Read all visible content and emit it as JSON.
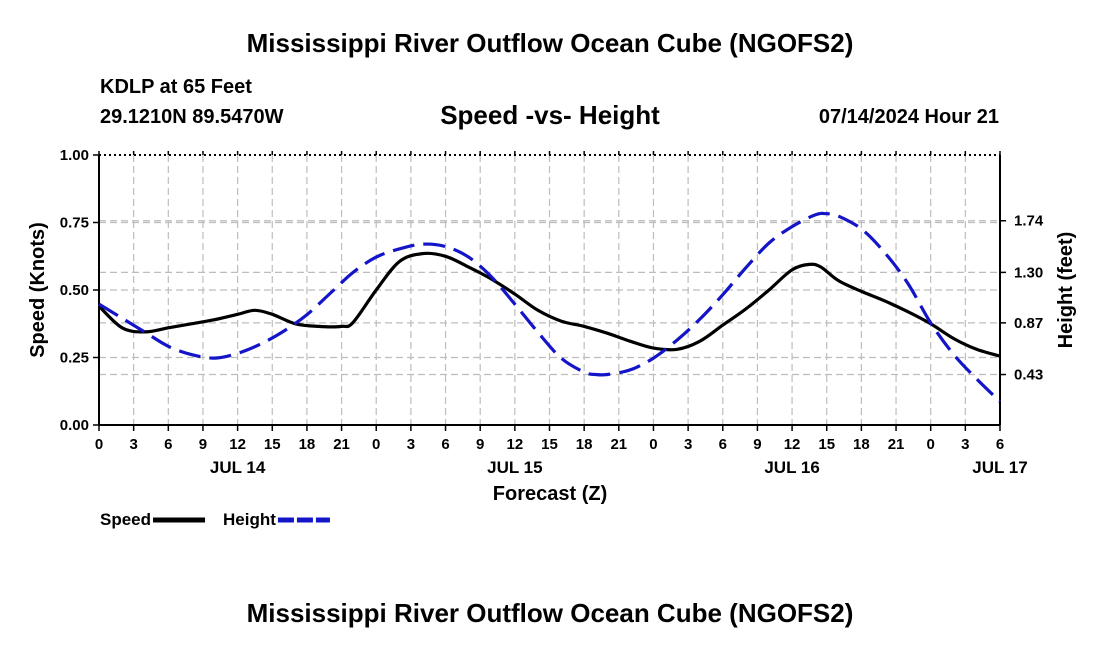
{
  "title": "Mississippi River Outflow Ocean Cube (NGOFS2)",
  "station": "KDLP at 65 Feet",
  "coordinates": "29.1210N  89.5470W",
  "subtitle": "Speed -vs- Height",
  "datetime": "07/14/2024 Hour 21",
  "footer_title": "Mississippi River Outflow Ocean Cube (NGOFS2)",
  "chart_data": {
    "type": "line",
    "xlabel": "Forecast (Z)",
    "ylabel_left": "Speed (Knots)",
    "ylabel_right": "Height (feet)",
    "x_range": [
      0,
      78
    ],
    "x_tick_step": 3,
    "x_tick_labels": [
      "0",
      "3",
      "6",
      "9",
      "12",
      "15",
      "18",
      "21",
      "0",
      "3",
      "6",
      "9",
      "12",
      "15",
      "18",
      "21",
      "0",
      "3",
      "6",
      "9",
      "12",
      "15",
      "18",
      "21",
      "0",
      "3",
      "6"
    ],
    "day_labels": [
      {
        "label": "JUL 14",
        "hour": 12
      },
      {
        "label": "JUL 15",
        "hour": 36
      },
      {
        "label": "JUL 16",
        "hour": 60
      },
      {
        "label": "JUL 17",
        "hour": 78
      }
    ],
    "left_axis": {
      "range": [
        0,
        1
      ],
      "ticks": [
        0,
        0.25,
        0.5,
        0.75,
        1.0
      ],
      "tick_labels": [
        "0.00",
        "0.25",
        "0.50",
        "0.75",
        "1.00"
      ]
    },
    "right_axis": {
      "range": [
        0,
        2.3
      ],
      "ticks": [
        0.43,
        0.87,
        1.3,
        1.74
      ],
      "tick_labels": [
        "0.43",
        "0.87",
        "1.30",
        "1.74"
      ]
    },
    "series": [
      {
        "name": "Speed",
        "axis": "left",
        "color": "#000000",
        "style": "solid",
        "x": [
          0,
          2,
          4,
          6,
          8,
          10,
          12,
          13.5,
          15,
          17,
          19,
          21,
          22,
          24,
          26,
          28,
          30,
          32,
          34,
          36,
          38,
          40,
          42,
          44,
          46,
          48,
          50,
          52,
          54,
          56,
          58,
          60,
          61.5,
          62.5,
          64,
          66,
          68,
          70,
          72,
          74,
          76,
          78
        ],
        "values": [
          0.44,
          0.36,
          0.345,
          0.36,
          0.375,
          0.39,
          0.41,
          0.425,
          0.41,
          0.375,
          0.365,
          0.365,
          0.38,
          0.5,
          0.605,
          0.635,
          0.625,
          0.585,
          0.54,
          0.485,
          0.425,
          0.385,
          0.365,
          0.34,
          0.31,
          0.285,
          0.28,
          0.31,
          0.37,
          0.43,
          0.5,
          0.575,
          0.595,
          0.585,
          0.535,
          0.495,
          0.46,
          0.42,
          0.375,
          0.32,
          0.28,
          0.255
        ]
      },
      {
        "name": "Height",
        "axis": "right",
        "color": "#1414c8",
        "style": "dashed",
        "x": [
          0,
          2,
          4,
          6,
          8,
          10,
          12,
          14,
          16,
          18,
          20,
          22,
          24,
          26,
          28,
          30,
          32,
          34,
          36,
          38,
          40,
          42,
          43,
          44,
          46,
          48,
          50,
          52,
          54,
          56,
          58,
          60,
          62,
          63,
          64,
          66,
          68,
          70,
          72,
          74,
          76,
          78
        ],
        "values": [
          1.03,
          0.91,
          0.79,
          0.67,
          0.6,
          0.57,
          0.61,
          0.69,
          0.8,
          0.94,
          1.12,
          1.3,
          1.43,
          1.5,
          1.54,
          1.52,
          1.43,
          1.26,
          1.03,
          0.79,
          0.57,
          0.45,
          0.43,
          0.43,
          0.47,
          0.57,
          0.72,
          0.9,
          1.11,
          1.34,
          1.55,
          1.69,
          1.79,
          1.8,
          1.78,
          1.67,
          1.47,
          1.21,
          0.87,
          0.6,
          0.39,
          0.2
        ]
      }
    ],
    "legend": [
      {
        "label": "Speed",
        "color": "#000000",
        "style": "solid"
      },
      {
        "label": "Height",
        "color": "#1414c8",
        "style": "dashed"
      }
    ],
    "grid": true,
    "legend_position": "bottom-left"
  }
}
